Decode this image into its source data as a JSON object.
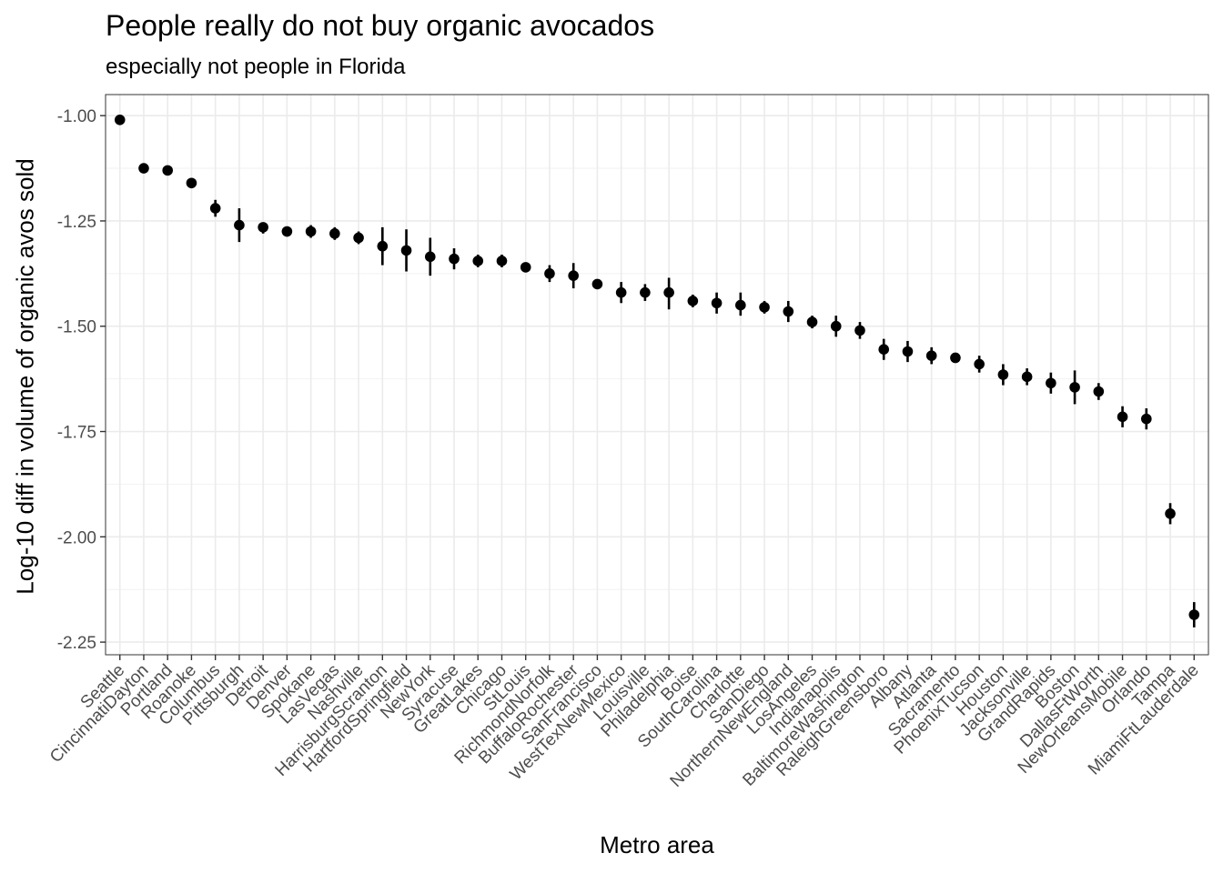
{
  "chart_data": {
    "type": "scatter",
    "title": "People really do not buy organic avocados",
    "subtitle": "especially not people in Florida",
    "xlabel": "Metro area",
    "ylabel": "Log-10 diff in volume of organic avos sold",
    "ylim": [
      -2.28,
      -0.95
    ],
    "yticks": [
      "-1.00",
      "-1.25",
      "-1.50",
      "-1.75",
      "-2.00",
      "-2.25"
    ],
    "grid": true,
    "categories": [
      "Seattle",
      "CincinnatiDayton",
      "Portland",
      "Roanoke",
      "Columbus",
      "Pittsburgh",
      "Detroit",
      "Denver",
      "Spokane",
      "LasVegas",
      "Nashville",
      "HarrisburgScranton",
      "HartfordSpringfield",
      "NewYork",
      "Syracuse",
      "GreatLakes",
      "Chicago",
      "StLouis",
      "RichmondNorfolk",
      "BuffaloRochester",
      "SanFrancisco",
      "WestTexNewMexico",
      "Louisville",
      "Philadelphia",
      "Boise",
      "SouthCarolina",
      "Charlotte",
      "SanDiego",
      "NorthernNewEngland",
      "LosAngeles",
      "Indianapolis",
      "BaltimoreWashington",
      "RaleighGreensboro",
      "Albany",
      "Atlanta",
      "Sacramento",
      "PhoenixTucson",
      "Houston",
      "Jacksonville",
      "GrandRapids",
      "Boston",
      "DallasFtWorth",
      "NewOrleansMobile",
      "Orlando",
      "Tampa",
      "MiamiFtLauderdale"
    ],
    "values": [
      -1.01,
      -1.125,
      -1.13,
      -1.16,
      -1.22,
      -1.26,
      -1.265,
      -1.275,
      -1.275,
      -1.28,
      -1.29,
      -1.31,
      -1.32,
      -1.335,
      -1.34,
      -1.345,
      -1.345,
      -1.36,
      -1.375,
      -1.38,
      -1.4,
      -1.42,
      -1.42,
      -1.42,
      -1.44,
      -1.445,
      -1.45,
      -1.455,
      -1.465,
      -1.49,
      -1.5,
      -1.51,
      -1.555,
      -1.56,
      -1.57,
      -1.575,
      -1.59,
      -1.615,
      -1.62,
      -1.635,
      -1.645,
      -1.655,
      -1.715,
      -1.72,
      -1.945,
      -2.185
    ],
    "lower": [
      -1.02,
      -1.135,
      -1.14,
      -1.17,
      -1.24,
      -1.3,
      -1.28,
      -1.285,
      -1.29,
      -1.295,
      -1.305,
      -1.355,
      -1.37,
      -1.38,
      -1.365,
      -1.36,
      -1.36,
      -1.37,
      -1.395,
      -1.41,
      -1.41,
      -1.445,
      -1.44,
      -1.46,
      -1.455,
      -1.47,
      -1.475,
      -1.47,
      -1.49,
      -1.505,
      -1.525,
      -1.53,
      -1.58,
      -1.585,
      -1.59,
      -1.585,
      -1.61,
      -1.64,
      -1.64,
      -1.66,
      -1.685,
      -1.675,
      -1.74,
      -1.745,
      -1.97,
      -2.215
    ],
    "upper": [
      -1.0,
      -1.115,
      -1.12,
      -1.15,
      -1.2,
      -1.22,
      -1.255,
      -1.265,
      -1.26,
      -1.265,
      -1.275,
      -1.265,
      -1.27,
      -1.29,
      -1.315,
      -1.33,
      -1.33,
      -1.35,
      -1.355,
      -1.35,
      -1.39,
      -1.395,
      -1.4,
      -1.385,
      -1.425,
      -1.42,
      -1.42,
      -1.44,
      -1.44,
      -1.475,
      -1.475,
      -1.49,
      -1.53,
      -1.535,
      -1.55,
      -1.565,
      -1.57,
      -1.59,
      -1.6,
      -1.61,
      -1.605,
      -1.635,
      -1.69,
      -1.695,
      -1.92,
      -2.155
    ]
  }
}
